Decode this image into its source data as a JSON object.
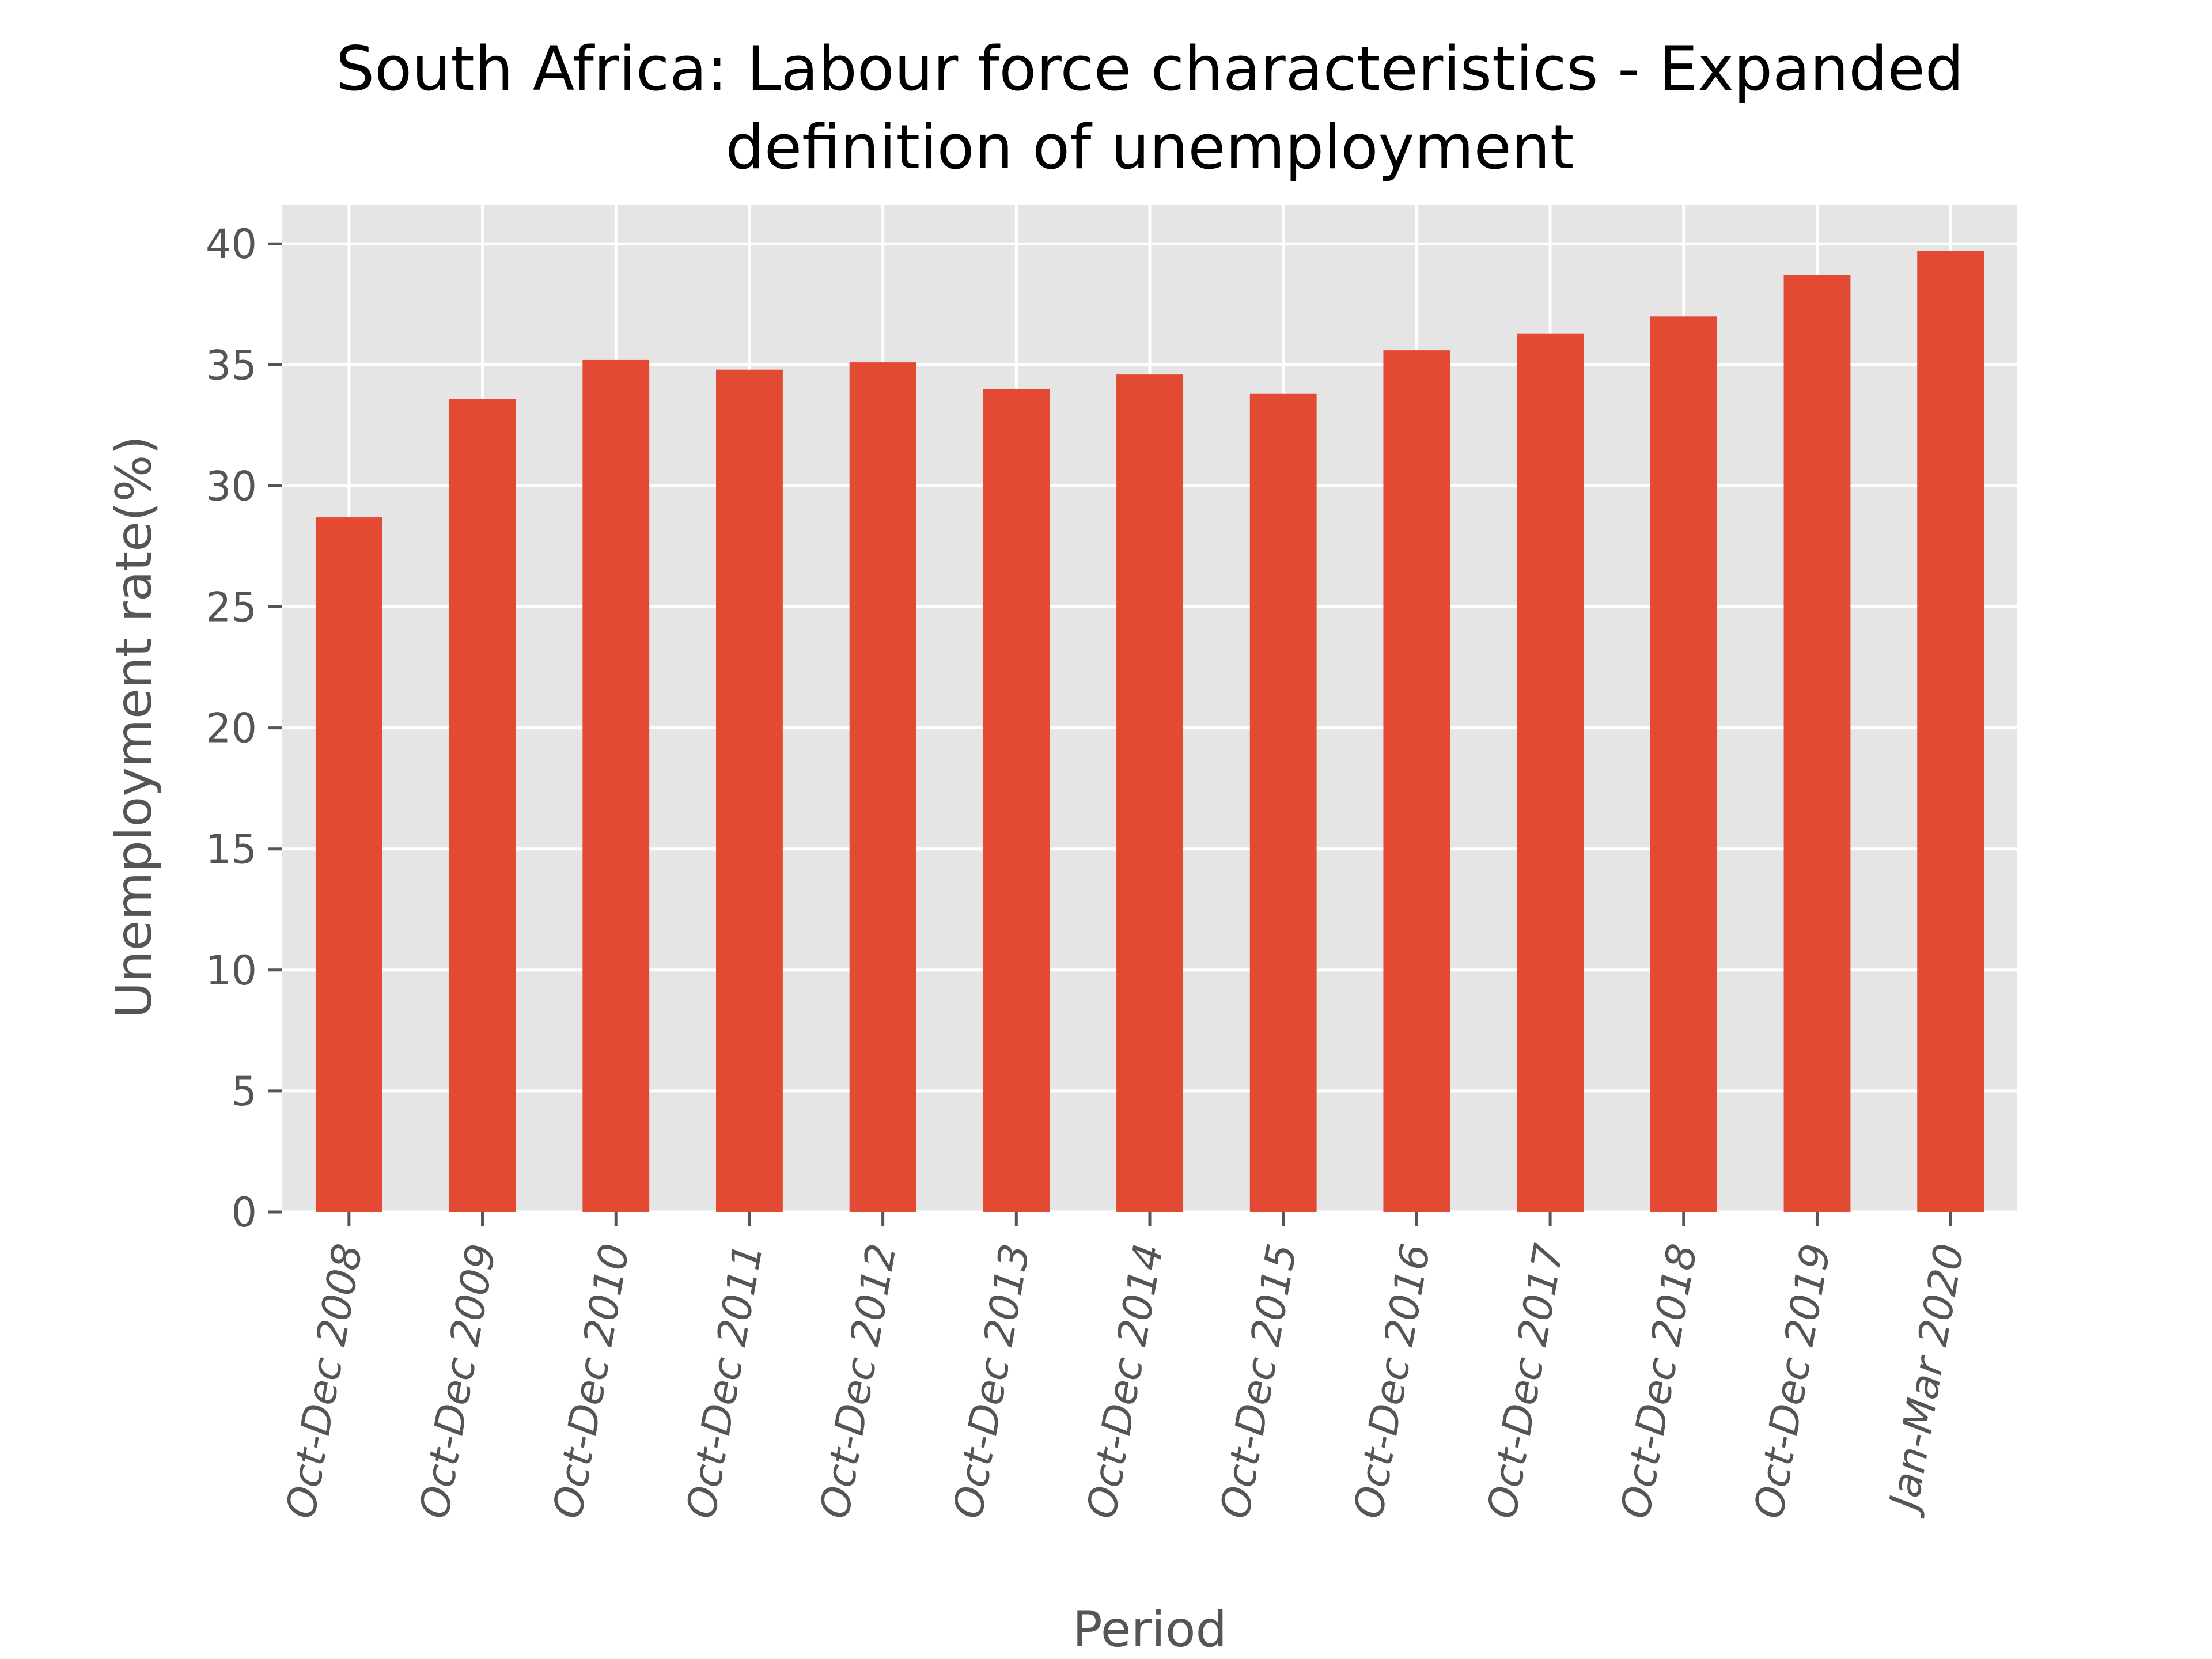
{
  "chart_data": {
    "type": "bar",
    "title_lines": [
      "South Africa: Labour force characteristics - Expanded",
      "definition of unemployment"
    ],
    "xlabel": "Period",
    "ylabel": "Unemployment rate(%)",
    "categories": [
      "Oct-Dec 2008",
      "Oct-Dec 2009",
      "Oct-Dec 2010",
      "Oct-Dec 2011",
      "Oct-Dec 2012",
      "Oct-Dec 2013",
      "Oct-Dec 2014",
      "Oct-Dec 2015",
      "Oct-Dec 2016",
      "Oct-Dec 2017",
      "Oct-Dec 2018",
      "Oct-Dec 2019",
      "Jan-Mar 2020"
    ],
    "values": [
      28.7,
      33.6,
      35.2,
      34.8,
      35.1,
      34.0,
      34.6,
      33.8,
      35.6,
      36.3,
      37.0,
      38.7,
      39.7
    ],
    "ylim": [
      0,
      41.6
    ],
    "yticks": [
      0,
      5,
      10,
      15,
      20,
      25,
      30,
      35,
      40
    ],
    "grid": true,
    "colors": {
      "bar": "#E24A33",
      "plot_background": "#E5E5E5",
      "grid": "#FFFFFF",
      "tick": "#555555"
    }
  }
}
